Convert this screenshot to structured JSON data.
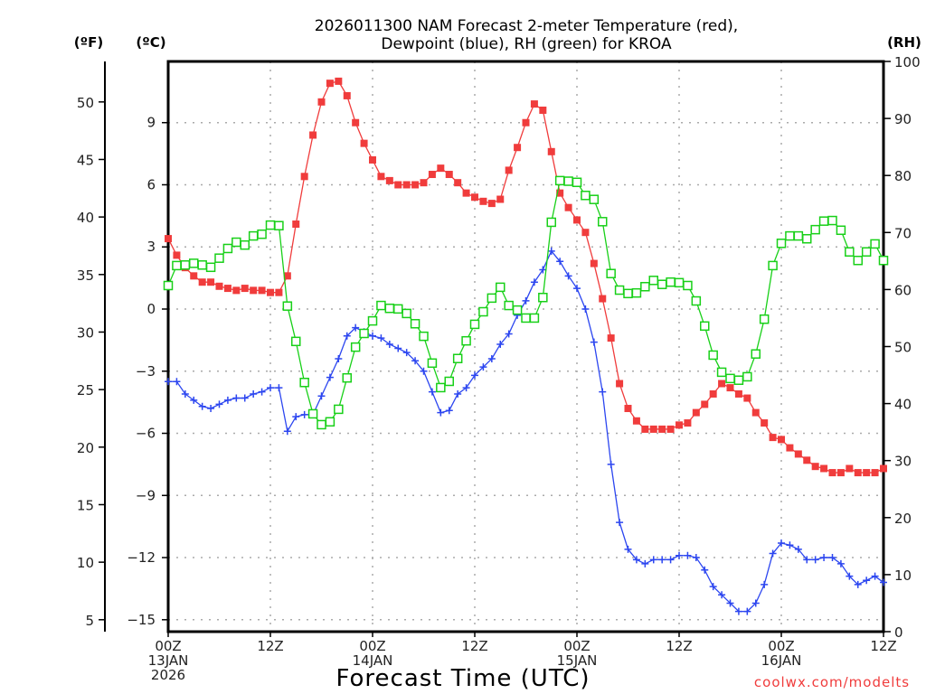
{
  "chart_data": {
    "type": "line",
    "title_line1": "2026011300 NAM Forecast 2-meter Temperature (red),",
    "title_line2": "Dewpoint (blue), RH (green) for KROA",
    "xlabel": "Forecast Time (UTC)",
    "credit": "coolwx.com/modelts",
    "units": {
      "left_f": "(ºF)",
      "left_c": "(ºC)",
      "right": "(RH)"
    },
    "x_hours_range": [
      0,
      84
    ],
    "x_ticks": [
      {
        "hour": 0,
        "l1": "00Z",
        "l2": "13JAN",
        "l3": "2026"
      },
      {
        "hour": 12,
        "l1": "12Z",
        "l2": "",
        "l3": ""
      },
      {
        "hour": 24,
        "l1": "00Z",
        "l2": "14JAN",
        "l3": ""
      },
      {
        "hour": 36,
        "l1": "12Z",
        "l2": "",
        "l3": ""
      },
      {
        "hour": 48,
        "l1": "00Z",
        "l2": "15JAN",
        "l3": ""
      },
      {
        "hour": 60,
        "l1": "12Z",
        "l2": "",
        "l3": ""
      },
      {
        "hour": 72,
        "l1": "00Z",
        "l2": "16JAN",
        "l3": ""
      },
      {
        "hour": 84,
        "l1": "12Z",
        "l2": "",
        "l3": ""
      }
    ],
    "c_ticks": [
      "9",
      "6",
      "3",
      "0",
      "−3",
      "−6",
      "−9",
      "−12",
      "−15"
    ],
    "c_tick_values": [
      9,
      6,
      3,
      0,
      -3,
      -6,
      -9,
      -12,
      -15
    ],
    "f_ticks": [
      "50",
      "45",
      "40",
      "35",
      "30",
      "25",
      "20",
      "15",
      "10",
      "5"
    ],
    "f_tick_values": [
      50,
      45,
      40,
      35,
      30,
      25,
      20,
      15,
      10,
      5
    ],
    "rh_ticks": [
      "100",
      "90",
      "80",
      "70",
      "60",
      "50",
      "40",
      "30",
      "20",
      "10",
      "0"
    ],
    "rh_tick_values": [
      100,
      90,
      80,
      70,
      60,
      50,
      40,
      30,
      20,
      10,
      0
    ],
    "ylim_c": [
      -15.5,
      12.1
    ],
    "ylim_rh": [
      0,
      100
    ],
    "series": [
      {
        "name": "Temperature",
        "unit": "C",
        "color": "#f03c3c",
        "marker": "filled-square",
        "values": [
          3.4,
          2.6,
          2.0,
          1.6,
          1.3,
          1.3,
          1.1,
          1.0,
          0.9,
          1.0,
          0.9,
          0.9,
          0.8,
          0.8,
          1.6,
          4.1,
          6.4,
          8.4,
          10.0,
          10.9,
          11.0,
          10.3,
          9.0,
          8.0,
          7.2,
          6.4,
          6.2,
          6.0,
          6.0,
          6.0,
          6.1,
          6.5,
          6.8,
          6.5,
          6.1,
          5.6,
          5.4,
          5.2,
          5.1,
          5.3,
          6.7,
          7.8,
          9.0,
          9.9,
          9.6,
          7.6,
          5.6,
          4.9,
          4.3,
          3.7,
          2.2,
          0.5,
          -1.4,
          -3.6,
          -4.8,
          -5.4,
          -5.8,
          -5.8,
          -5.8,
          -5.8,
          -5.6,
          -5.5,
          -5.0,
          -4.6,
          -4.1,
          -3.6,
          -3.8,
          -4.1,
          -4.3,
          -5.0,
          -5.5,
          -6.2,
          -6.3,
          -6.7,
          -7.0,
          -7.3,
          -7.6,
          -7.7,
          -7.9,
          -7.9,
          -7.7,
          -7.9,
          -7.9,
          -7.9,
          -7.7
        ]
      },
      {
        "name": "Dewpoint",
        "unit": "C",
        "color": "#2c46f0",
        "marker": "plus",
        "values": [
          -3.5,
          -3.5,
          -4.1,
          -4.4,
          -4.7,
          -4.8,
          -4.6,
          -4.4,
          -4.3,
          -4.3,
          -4.1,
          -4.0,
          -3.8,
          -3.8,
          -5.9,
          -5.2,
          -5.1,
          -5.1,
          -4.2,
          -3.3,
          -2.4,
          -1.3,
          -0.9,
          -1.1,
          -1.3,
          -1.4,
          -1.7,
          -1.9,
          -2.1,
          -2.5,
          -3.0,
          -4.0,
          -5.0,
          -4.9,
          -4.1,
          -3.8,
          -3.2,
          -2.8,
          -2.4,
          -1.7,
          -1.2,
          -0.3,
          0.4,
          1.3,
          1.9,
          2.8,
          2.3,
          1.6,
          1.0,
          0.0,
          -1.6,
          -4.0,
          -7.5,
          -10.3,
          -11.6,
          -12.1,
          -12.3,
          -12.1,
          -12.1,
          -12.1,
          -11.9,
          -11.9,
          -12.0,
          -12.6,
          -13.4,
          -13.8,
          -14.2,
          -14.6,
          -14.6,
          -14.2,
          -13.3,
          -11.8,
          -11.3,
          -11.4,
          -11.6,
          -12.1,
          -12.1,
          -12.0,
          -12.0,
          -12.3,
          -12.9,
          -13.3,
          -13.1,
          -12.9,
          -13.2
        ]
      },
      {
        "name": "RH",
        "unit": "%",
        "color": "#18d018",
        "marker": "open-square",
        "values": [
          60.7,
          64.2,
          64.3,
          64.6,
          64.3,
          63.9,
          65.5,
          67.2,
          68.3,
          67.8,
          69.4,
          69.7,
          71.3,
          71.2,
          57.1,
          50.9,
          43.7,
          38.2,
          36.3,
          36.8,
          39.0,
          44.5,
          49.9,
          52.3,
          54.5,
          57.2,
          56.7,
          56.6,
          55.8,
          54.0,
          51.8,
          47.1,
          42.8,
          43.9,
          47.9,
          51.0,
          53.9,
          56.1,
          58.5,
          60.4,
          57.2,
          56.4,
          55.0,
          55.0,
          58.6,
          71.8,
          79.1,
          79.0,
          78.8,
          76.5,
          75.8,
          71.9,
          62.8,
          59.9,
          59.3,
          59.4,
          60.5,
          61.6,
          60.9,
          61.3,
          61.2,
          60.7,
          58.0,
          53.6,
          48.5,
          45.5,
          44.4,
          44.1,
          44.7,
          48.7,
          54.8,
          64.2,
          68.1,
          69.4,
          69.4,
          68.9,
          70.5,
          72.0,
          72.1,
          70.4,
          66.6,
          65.1,
          66.6,
          68.0,
          65.1
        ]
      }
    ]
  }
}
